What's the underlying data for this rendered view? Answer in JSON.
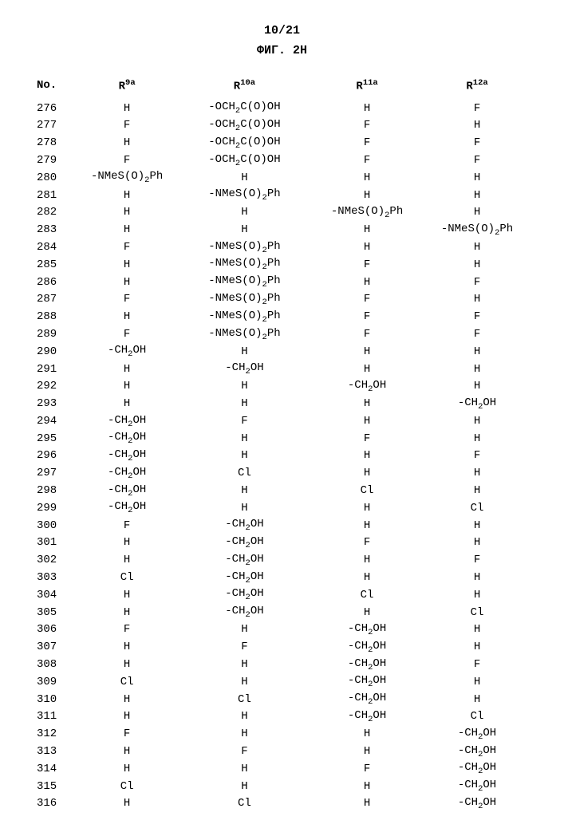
{
  "page_num": "10/21",
  "fig_title": "ФИГ. 2Н",
  "columns": [
    "No.",
    "R9a",
    "R10a",
    "R11a",
    "R12a"
  ],
  "rows": [
    [
      "276",
      "H",
      "-OCH2C(O)OH",
      "H",
      "F"
    ],
    [
      "277",
      "F",
      "-OCH2C(O)OH",
      "F",
      "H"
    ],
    [
      "278",
      "H",
      "-OCH2C(O)OH",
      "F",
      "F"
    ],
    [
      "279",
      "F",
      "-OCH2C(O)OH",
      "F",
      "F"
    ],
    [
      "280",
      "-NMeS(O)2Ph",
      "H",
      "H",
      "H"
    ],
    [
      "281",
      "H",
      "-NMeS(O)2Ph",
      "H",
      "H"
    ],
    [
      "282",
      "H",
      "H",
      "-NMeS(O)2Ph",
      "H"
    ],
    [
      "283",
      "H",
      "H",
      "H",
      "-NMeS(O)2Ph"
    ],
    [
      "284",
      "F",
      "-NMeS(O)2Ph",
      "H",
      "H"
    ],
    [
      "285",
      "H",
      "-NMeS(O)2Ph",
      "F",
      "H"
    ],
    [
      "286",
      "H",
      "-NMeS(O)2Ph",
      "H",
      "F"
    ],
    [
      "287",
      "F",
      "-NMeS(O)2Ph",
      "F",
      "H"
    ],
    [
      "288",
      "H",
      "-NMeS(O)2Ph",
      "F",
      "F"
    ],
    [
      "289",
      "F",
      "-NMeS(O)2Ph",
      "F",
      "F"
    ],
    [
      "290",
      "-CH2OH",
      "H",
      "H",
      "H"
    ],
    [
      "291",
      "H",
      "-CH2OH",
      "H",
      "H"
    ],
    [
      "292",
      "H",
      "H",
      "-CH2OH",
      "H"
    ],
    [
      "293",
      "H",
      "H",
      "H",
      "-CH2OH"
    ],
    [
      "294",
      "-CH2OH",
      "F",
      "H",
      "H"
    ],
    [
      "295",
      "-CH2OH",
      "H",
      "F",
      "H"
    ],
    [
      "296",
      "-CH2OH",
      "H",
      "H",
      "F"
    ],
    [
      "297",
      "-CH2OH",
      "Cl",
      "H",
      "H"
    ],
    [
      "298",
      "-CH2OH",
      "H",
      "Cl",
      "H"
    ],
    [
      "299",
      "-CH2OH",
      "H",
      "H",
      "Cl"
    ],
    [
      "300",
      "F",
      "-CH2OH",
      "H",
      "H"
    ],
    [
      "301",
      "H",
      "-CH2OH",
      "F",
      "H"
    ],
    [
      "302",
      "H",
      "-CH2OH",
      "H",
      "F"
    ],
    [
      "303",
      "Cl",
      "-CH2OH",
      "H",
      "H"
    ],
    [
      "304",
      "H",
      "-CH2OH",
      "Cl",
      "H"
    ],
    [
      "305",
      "H",
      "-CH2OH",
      "H",
      "Cl"
    ],
    [
      "306",
      "F",
      "H",
      "-CH2OH",
      "H"
    ],
    [
      "307",
      "H",
      "F",
      "-CH2OH",
      "H"
    ],
    [
      "308",
      "H",
      "H",
      "-CH2OH",
      "F"
    ],
    [
      "309",
      "Cl",
      "H",
      "-CH2OH",
      "H"
    ],
    [
      "310",
      "H",
      "Cl",
      "-CH2OH",
      "H"
    ],
    [
      "311",
      "H",
      "H",
      "-CH2OH",
      "Cl"
    ],
    [
      "312",
      "F",
      "H",
      "H",
      "-CH2OH"
    ],
    [
      "313",
      "H",
      "F",
      "H",
      "-CH2OH"
    ],
    [
      "314",
      "H",
      "H",
      "F",
      "-CH2OH"
    ],
    [
      "315",
      "Cl",
      "H",
      "H",
      "-CH2OH"
    ],
    [
      "316",
      "H",
      "Cl",
      "H",
      "-CH2OH"
    ]
  ]
}
